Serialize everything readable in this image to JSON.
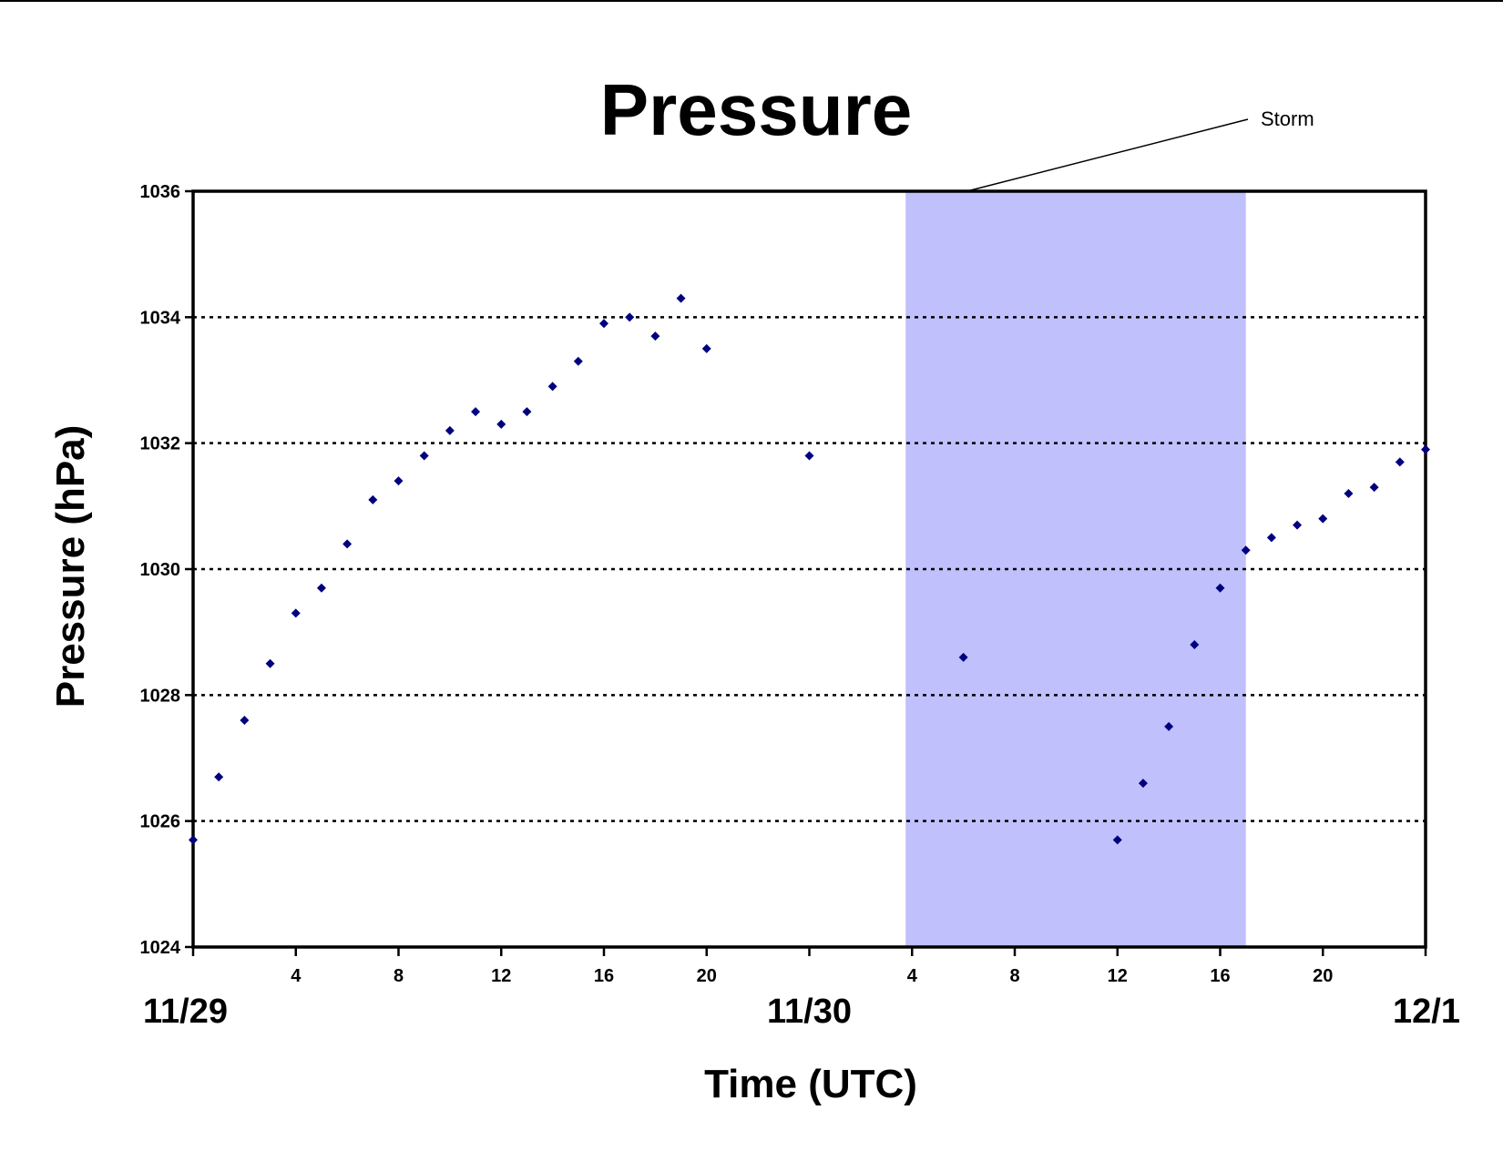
{
  "chart_data": {
    "type": "scatter",
    "title": "Pressure",
    "xlabel": "Time (UTC)",
    "ylabel": "Pressure (hPa)",
    "ylim": [
      1024,
      1036
    ],
    "y_ticks": [
      "1024",
      "1026",
      "1028",
      "1030",
      "1032",
      "1034",
      "1036"
    ],
    "xlim": [
      "11/29 00:00",
      "12/1 00:00"
    ],
    "x_hour_ticks": [
      {
        "t": "11/29 04:00",
        "label": "4"
      },
      {
        "t": "11/29 08:00",
        "label": "8"
      },
      {
        "t": "11/29 12:00",
        "label": "12"
      },
      {
        "t": "11/29 16:00",
        "label": "16"
      },
      {
        "t": "11/29 20:00",
        "label": "20"
      },
      {
        "t": "11/30 00:00",
        "label": ""
      },
      {
        "t": "11/30 04:00",
        "label": "4"
      },
      {
        "t": "11/30 08:00",
        "label": "8"
      },
      {
        "t": "11/30 12:00",
        "label": "12"
      },
      {
        "t": "11/30 16:00",
        "label": "16"
      },
      {
        "t": "11/30 20:00",
        "label": "20"
      }
    ],
    "x_date_labels": [
      {
        "t": "11/29 00:00",
        "label": "11/29"
      },
      {
        "t": "11/30 00:00",
        "label": "11/30"
      },
      {
        "t": "12/1 00:00",
        "label": "12/1"
      }
    ],
    "gridlines": "horizontal dotted at major y ticks",
    "shaded_region": {
      "x_start": "11/30 03:45",
      "x_end": "11/30 17:00",
      "color": "#c0c0fc"
    },
    "annotation": {
      "text": "Storm",
      "placement": "above plot, right of shaded region"
    },
    "marker_color": "#00007f",
    "series": [
      {
        "points": [
          [
            "11/29 00:00",
            1025.7
          ],
          [
            "11/29 01:00",
            1026.7
          ],
          [
            "11/29 02:00",
            1027.6
          ],
          [
            "11/29 03:00",
            1028.5
          ],
          [
            "11/29 04:00",
            1029.3
          ],
          [
            "11/29 05:00",
            1029.7
          ],
          [
            "11/29 06:00",
            1030.4
          ],
          [
            "11/29 07:00",
            1031.1
          ],
          [
            "11/29 08:00",
            1031.4
          ],
          [
            "11/29 09:00",
            1031.8
          ],
          [
            "11/29 10:00",
            1032.2
          ],
          [
            "11/29 11:00",
            1032.5
          ],
          [
            "11/29 12:00",
            1032.3
          ],
          [
            "11/29 13:00",
            1032.5
          ],
          [
            "11/29 14:00",
            1032.9
          ],
          [
            "11/29 15:00",
            1033.3
          ],
          [
            "11/29 16:00",
            1033.9
          ],
          [
            "11/29 17:00",
            1034.0
          ],
          [
            "11/29 18:00",
            1033.7
          ],
          [
            "11/29 19:00",
            1034.3
          ],
          [
            "11/29 20:00",
            1033.5
          ],
          [
            "11/30 00:00",
            1031.8
          ],
          [
            "11/30 06:00",
            1028.6
          ],
          [
            "11/30 12:00",
            1025.7
          ],
          [
            "11/30 13:00",
            1026.6
          ],
          [
            "11/30 14:00",
            1027.5
          ],
          [
            "11/30 15:00",
            1028.8
          ],
          [
            "11/30 16:00",
            1029.7
          ],
          [
            "11/30 17:00",
            1030.3
          ],
          [
            "11/30 18:00",
            1030.5
          ],
          [
            "11/30 19:00",
            1030.7
          ],
          [
            "11/30 20:00",
            1030.8
          ],
          [
            "11/30 21:00",
            1031.2
          ],
          [
            "11/30 22:00",
            1031.3
          ],
          [
            "11/30 23:00",
            1031.7
          ],
          [
            "12/1 00:00",
            1031.9
          ]
        ]
      }
    ]
  }
}
